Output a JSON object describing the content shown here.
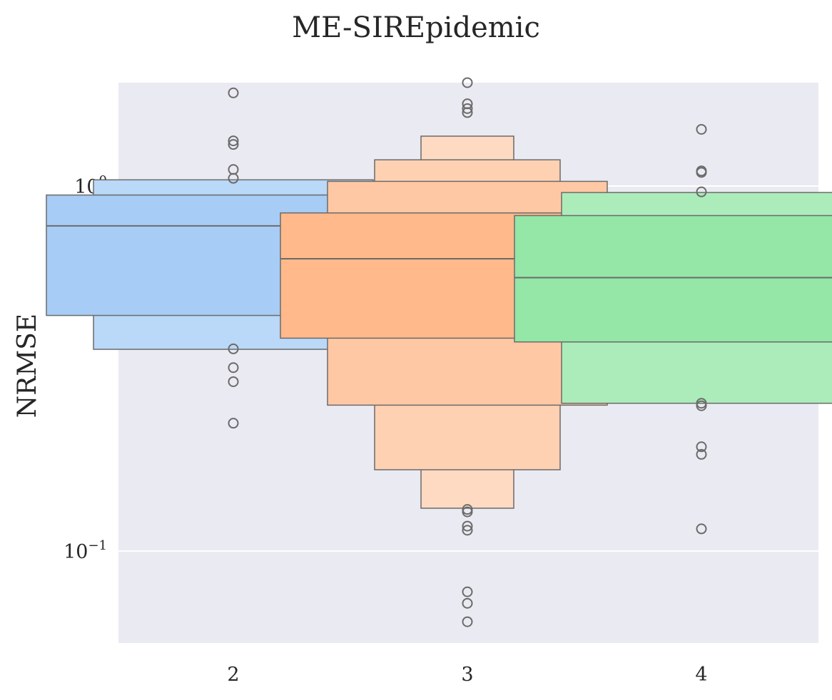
{
  "chart_data": {
    "type": "boxen",
    "title": "ME-SIREpidemic",
    "xlabel": "",
    "ylabel": "NRMSE",
    "yscale": "log",
    "ylim": [
      0.0555,
      1.94
    ],
    "grid": true,
    "categories": [
      "2",
      "3",
      "4"
    ],
    "yticks": [
      {
        "value": 0.1,
        "base": "10",
        "exp": "−1"
      },
      {
        "value": 1.0,
        "base": "10",
        "exp": "0"
      }
    ],
    "series": [
      {
        "category": "2",
        "color": "#a1c9f4",
        "median": 0.778,
        "boxes": [
          {
            "low": 0.442,
            "high": 0.945,
            "level": 0
          },
          {
            "low": 0.357,
            "high": 1.04,
            "level": 1
          }
        ],
        "outliers": [
          1.8,
          1.33,
          1.3,
          1.11,
          1.05,
          0.358,
          0.318,
          0.291,
          0.224
        ]
      },
      {
        "category": "3",
        "color": "#ffb482",
        "median": 0.632,
        "boxes": [
          {
            "low": 0.383,
            "high": 0.844,
            "level": 0
          },
          {
            "low": 0.251,
            "high": 1.03,
            "level": 1
          },
          {
            "low": 0.167,
            "high": 1.18,
            "level": 2
          },
          {
            "low": 0.131,
            "high": 1.37,
            "level": 3
          }
        ],
        "outliers": [
          1.92,
          1.68,
          1.63,
          1.59,
          0.13,
          0.128,
          0.117,
          0.114,
          0.0773,
          0.0719,
          0.064
        ]
      },
      {
        "category": "4",
        "color": "#8de5a1",
        "median": 0.561,
        "boxes": [
          {
            "low": 0.374,
            "high": 0.83,
            "level": 0
          },
          {
            "low": 0.254,
            "high": 0.96,
            "level": 1
          }
        ],
        "outliers": [
          1.43,
          1.1,
          1.09,
          0.964,
          0.254,
          0.25,
          0.193,
          0.184,
          0.115
        ]
      }
    ]
  }
}
